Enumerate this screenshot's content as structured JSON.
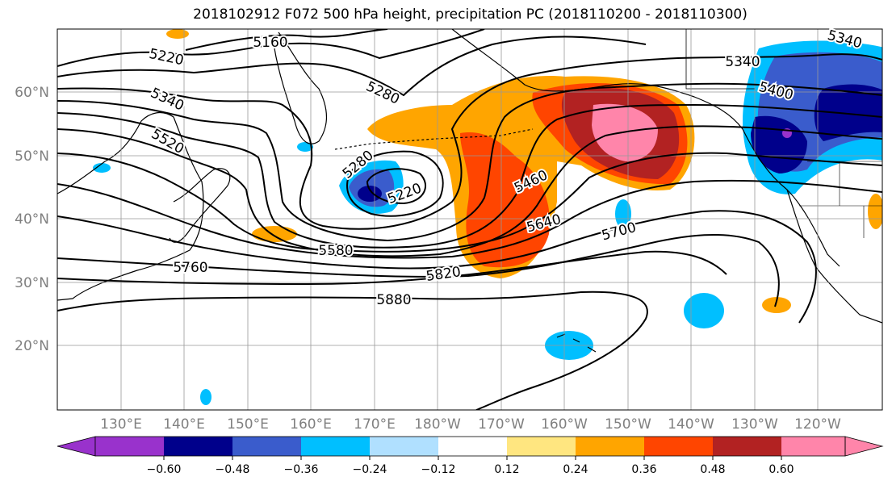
{
  "title": "2018102912 F072 500 hPa height, precipitation PC (2018110200 - 2018110300)",
  "map": {
    "lat_ticks": [
      "60°N",
      "50°N",
      "40°N",
      "30°N",
      "20°N"
    ],
    "lon_ticks": [
      "130°E",
      "140°E",
      "150°E",
      "160°E",
      "170°E",
      "180°W",
      "170°W",
      "160°W",
      "150°W",
      "140°W",
      "130°W",
      "120°W"
    ],
    "contour_labels": [
      "5160",
      "5220",
      "5340",
      "5520",
      "5280",
      "5280",
      "5220",
      "5340",
      "5400",
      "5340",
      "5460",
      "5640",
      "5700",
      "5580",
      "5760",
      "5820",
      "5880"
    ]
  },
  "colorbar": {
    "colors": [
      "#9932cc",
      "#00008b",
      "#3a5ccc",
      "#00bfff",
      "#b0e0ff",
      "#ffffff",
      "#ffe680",
      "#ffa500",
      "#ff4500",
      "#b22222",
      "#ff85aa"
    ],
    "labels": [
      "−0.60",
      "−0.48",
      "−0.36",
      "−0.24",
      "−0.12",
      "0.12",
      "0.24",
      "0.36",
      "0.48",
      "0.60"
    ]
  }
}
